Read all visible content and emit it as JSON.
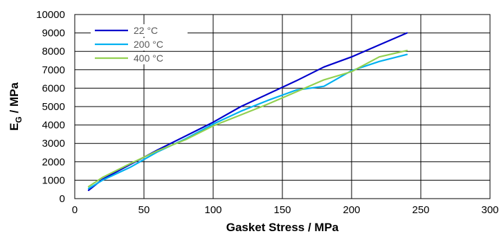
{
  "chart_data": {
    "type": "line",
    "title": "",
    "xlabel": "Gasket Stress / MPa",
    "ylabel_main": "E",
    "ylabel_sub": "G",
    "ylabel_rest": " / MPa",
    "xlim": [
      0,
      300
    ],
    "ylim": [
      0,
      10000
    ],
    "xticks": [
      "0",
      "50",
      "100",
      "150",
      "200",
      "250",
      "300"
    ],
    "yticks": [
      "0",
      "1000",
      "2000",
      "3000",
      "4000",
      "5000",
      "6000",
      "7000",
      "8000",
      "9000",
      "10000"
    ],
    "grid": true,
    "legend_position": "top-left",
    "series": [
      {
        "name": "22 °C",
        "color": "#0000CC",
        "x": [
          10,
          20,
          40,
          60,
          80,
          100,
          120,
          140,
          160,
          180,
          200,
          220,
          240
        ],
        "y": [
          450,
          1050,
          1850,
          2650,
          3400,
          4150,
          5000,
          5700,
          6400,
          7150,
          7700,
          8350,
          9000
        ]
      },
      {
        "name": "200 °C",
        "color": "#00B0F0",
        "x": [
          10,
          20,
          40,
          60,
          80,
          100,
          120,
          140,
          160,
          180,
          200,
          220,
          240
        ],
        "y": [
          550,
          1000,
          1700,
          2550,
          3250,
          4050,
          4750,
          5350,
          5900,
          6100,
          6950,
          7450,
          7830
        ]
      },
      {
        "name": "400 °C",
        "color": "#92D050",
        "x": [
          10,
          20,
          40,
          60,
          80,
          100,
          120,
          140,
          160,
          180,
          200,
          220,
          240
        ],
        "y": [
          650,
          1150,
          1900,
          2600,
          3200,
          3950,
          4550,
          5150,
          5800,
          6450,
          6900,
          7700,
          8050
        ]
      }
    ]
  }
}
